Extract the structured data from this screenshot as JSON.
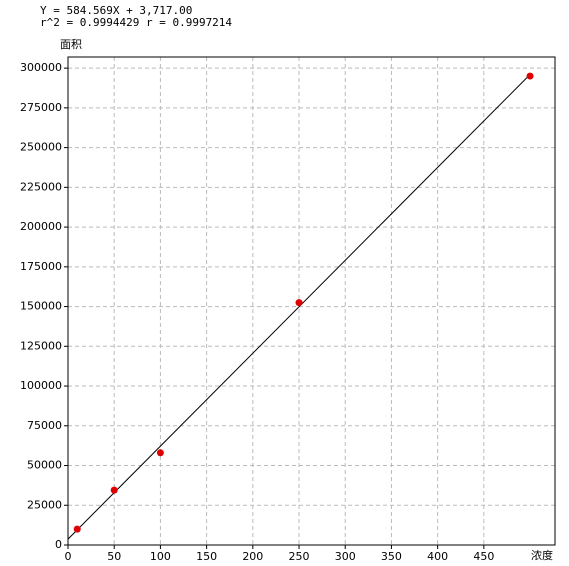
{
  "chart_data": {
    "type": "scatter",
    "equation": "Y = 584.569X + 3,717.00",
    "stats": "r^2 = 0.9994429  r = 0.9997214",
    "ylabel": "面积",
    "xlabel": "浓度",
    "series": [
      {
        "color": "#e00000",
        "x": [
          10,
          50,
          100,
          250,
          500
        ],
        "values": [
          10000,
          34500,
          58000,
          152500,
          295000
        ]
      }
    ],
    "fit_line": {
      "color": "#000000",
      "x": [
        0,
        500
      ],
      "values": [
        3717,
        296002
      ]
    },
    "xlim": [
      0,
      527
    ],
    "ylim": [
      0,
      307000
    ],
    "xticks": [
      0,
      50,
      100,
      150,
      200,
      250,
      300,
      350,
      400,
      450
    ],
    "yticks": [
      0,
      25000,
      50000,
      75000,
      100000,
      125000,
      150000,
      175000,
      200000,
      225000,
      250000,
      275000,
      300000
    ],
    "grid": true
  }
}
